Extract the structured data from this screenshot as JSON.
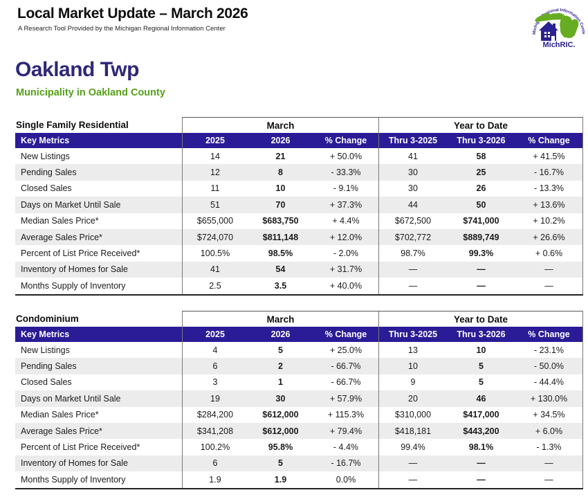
{
  "header": {
    "title": "Local Market Update – March 2026",
    "subtitle": "A Research Tool Provided by the Michigan Regional Information Center",
    "logo": {
      "arc_text": "Michigan Regional Information Center",
      "brand": "MichRIC.",
      "green": "#67ad21",
      "blue": "#2b2192"
    }
  },
  "location": {
    "name": "Oakland Twp",
    "subtitle": "Municipality in Oakland County"
  },
  "columns": {
    "key_metrics": "Key Metrics",
    "march_group": "March",
    "ytd_group": "Year to Date",
    "march": [
      "2025",
      "2026",
      "% Change"
    ],
    "ytd": [
      "Thru 3-2025",
      "Thru 3-2026",
      "% Change"
    ]
  },
  "tables": [
    {
      "title": "Single Family Residential",
      "rows": [
        {
          "metric": "New Listings",
          "march": [
            "14",
            "21",
            "+ 50.0%"
          ],
          "ytd": [
            "41",
            "58",
            "+ 41.5%"
          ]
        },
        {
          "metric": "Pending Sales",
          "march": [
            "12",
            "8",
            "- 33.3%"
          ],
          "ytd": [
            "30",
            "25",
            "- 16.7%"
          ]
        },
        {
          "metric": "Closed Sales",
          "march": [
            "11",
            "10",
            "- 9.1%"
          ],
          "ytd": [
            "30",
            "26",
            "- 13.3%"
          ]
        },
        {
          "metric": "Days on Market Until Sale",
          "march": [
            "51",
            "70",
            "+ 37.3%"
          ],
          "ytd": [
            "44",
            "50",
            "+ 13.6%"
          ]
        },
        {
          "metric": "Median Sales Price*",
          "march": [
            "$655,000",
            "$683,750",
            "+ 4.4%"
          ],
          "ytd": [
            "$672,500",
            "$741,000",
            "+ 10.2%"
          ]
        },
        {
          "metric": "Average Sales Price*",
          "march": [
            "$724,070",
            "$811,148",
            "+ 12.0%"
          ],
          "ytd": [
            "$702,772",
            "$889,749",
            "+ 26.6%"
          ]
        },
        {
          "metric": "Percent of List Price Received*",
          "march": [
            "100.5%",
            "98.5%",
            "- 2.0%"
          ],
          "ytd": [
            "98.7%",
            "99.3%",
            "+ 0.6%"
          ]
        },
        {
          "metric": "Inventory of Homes for Sale",
          "march": [
            "41",
            "54",
            "+ 31.7%"
          ],
          "ytd": [
            "—",
            "—",
            "—"
          ]
        },
        {
          "metric": "Months Supply of Inventory",
          "march": [
            "2.5",
            "3.5",
            "+ 40.0%"
          ],
          "ytd": [
            "—",
            "—",
            "—"
          ]
        }
      ]
    },
    {
      "title": "Condominium",
      "rows": [
        {
          "metric": "New Listings",
          "march": [
            "4",
            "5",
            "+ 25.0%"
          ],
          "ytd": [
            "13",
            "10",
            "- 23.1%"
          ]
        },
        {
          "metric": "Pending Sales",
          "march": [
            "6",
            "2",
            "- 66.7%"
          ],
          "ytd": [
            "10",
            "5",
            "- 50.0%"
          ]
        },
        {
          "metric": "Closed Sales",
          "march": [
            "3",
            "1",
            "- 66.7%"
          ],
          "ytd": [
            "9",
            "5",
            "- 44.4%"
          ]
        },
        {
          "metric": "Days on Market Until Sale",
          "march": [
            "19",
            "30",
            "+ 57.9%"
          ],
          "ytd": [
            "20",
            "46",
            "+ 130.0%"
          ]
        },
        {
          "metric": "Median Sales Price*",
          "march": [
            "$284,200",
            "$612,000",
            "+ 115.3%"
          ],
          "ytd": [
            "$310,000",
            "$417,000",
            "+ 34.5%"
          ]
        },
        {
          "metric": "Average Sales Price*",
          "march": [
            "$341,208",
            "$612,000",
            "+ 79.4%"
          ],
          "ytd": [
            "$418,181",
            "$443,200",
            "+ 6.0%"
          ]
        },
        {
          "metric": "Percent of List Price Received*",
          "march": [
            "100.2%",
            "95.8%",
            "- 4.4%"
          ],
          "ytd": [
            "99.4%",
            "98.1%",
            "- 1.3%"
          ]
        },
        {
          "metric": "Inventory of Homes for Sale",
          "march": [
            "6",
            "5",
            "- 16.7%"
          ],
          "ytd": [
            "—",
            "—",
            "—"
          ]
        },
        {
          "metric": "Months Supply of Inventory",
          "march": [
            "1.9",
            "1.9",
            "0.0%"
          ],
          "ytd": [
            "—",
            "—",
            "—"
          ]
        }
      ]
    }
  ],
  "colors": {
    "band_navy": "#2a1c96",
    "location_navy": "#2e2878",
    "county_green": "#55a019",
    "alt_row": "#ececec"
  }
}
